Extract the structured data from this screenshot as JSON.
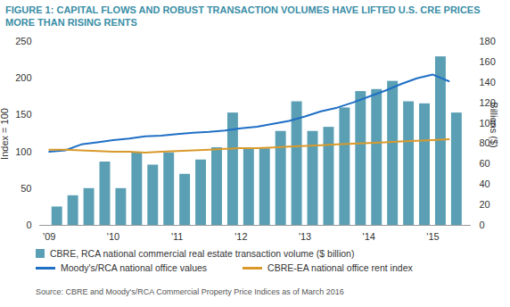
{
  "chart_data": {
    "type": "bar",
    "title": "FIGURE 1: CAPITAL FLOWS AND ROBUST TRANSACTION VOLUMES HAVE LIFTED U.S. CRE PRICES MORE THAN RISING RENTS",
    "y_label": "Index = 100",
    "y2_label": "Billions ($)",
    "source": "Source: CBRE and Moody's/RCA Commercial Property Price Indices as of March 2016",
    "x": [
      2009,
      2009.25,
      2009.5,
      2009.75,
      2010,
      2010.25,
      2010.5,
      2010.75,
      2011,
      2011.25,
      2011.5,
      2011.75,
      2012,
      2012.25,
      2012.5,
      2012.75,
      2013,
      2013.25,
      2013.5,
      2013.75,
      2014,
      2014.25,
      2014.5,
      2014.75,
      2015,
      2015.25
    ],
    "xlim": [
      2008.85,
      2015.6
    ],
    "xticks": [
      {
        "value": 2009,
        "label": "'09"
      },
      {
        "value": 2010,
        "label": "'10"
      },
      {
        "value": 2011,
        "label": "'11"
      },
      {
        "value": 2012,
        "label": "'12"
      },
      {
        "value": 2013,
        "label": "'13"
      },
      {
        "value": 2014,
        "label": "'14"
      },
      {
        "value": 2015,
        "label": "'15"
      }
    ],
    "ylim": [
      0,
      250
    ],
    "yticks": [
      0,
      50,
      100,
      150,
      200,
      250
    ],
    "y2lim": [
      0,
      180
    ],
    "y2ticks": [
      0,
      20,
      40,
      60,
      80,
      100,
      120,
      140,
      160,
      180
    ],
    "series": [
      {
        "name": "CBRE, RCA national commercial real estate transaction volume ($ billion)",
        "type": "bar",
        "axis": "y2",
        "color": "#5a9fb4",
        "values": [
          18,
          29,
          36,
          62,
          36,
          71,
          59,
          71,
          50,
          64,
          76,
          110,
          75,
          75,
          92,
          121,
          92,
          96,
          115,
          131,
          133,
          141,
          121,
          119,
          165,
          110
        ]
      },
      {
        "name": "Moody's/RCA national office values",
        "type": "line",
        "color": "#1f6fc5",
        "values": [
          100,
          102,
          110,
          113,
          116,
          118,
          121,
          122,
          124,
          126,
          127,
          129,
          132,
          134,
          138,
          142,
          148,
          155,
          160,
          167,
          175,
          183,
          192,
          200,
          205,
          196
        ]
      },
      {
        "name": "CBRE-EA national office rent index",
        "type": "line",
        "color": "#d99a2b",
        "values": [
          103,
          103,
          102,
          101,
          100,
          100,
          99,
          100,
          101,
          102,
          103,
          104,
          105,
          105,
          106,
          107,
          108,
          109,
          110,
          111,
          112,
          113,
          114,
          115,
          116,
          117
        ]
      }
    ]
  }
}
